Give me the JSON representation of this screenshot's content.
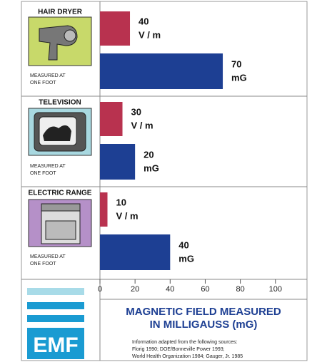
{
  "chart_data": {
    "type": "bar",
    "orientation": "horizontal",
    "categories": [
      "HAIR DRYER",
      "TELEVISION",
      "ELECTRIC RANGE"
    ],
    "notes": [
      [
        "MEASURED AT",
        "ONE FOOT"
      ],
      [
        "MEASURED AT",
        "ONE FOOT"
      ],
      [
        "MEASURED AT",
        "ONE FOOT"
      ]
    ],
    "series": [
      {
        "name": "V / m",
        "color": "#b8324f",
        "values": [
          40,
          30,
          10
        ],
        "axis": "x2"
      },
      {
        "name": "mG",
        "color": "#1d3f93",
        "values": [
          70,
          20,
          40
        ]
      }
    ],
    "xlim": [
      0,
      118
    ],
    "xticks": [
      0,
      20,
      40,
      60,
      80,
      100
    ],
    "x2lim": [
      0,
      276
    ],
    "title": [
      "MAGNETIC FIELD MEASURED",
      "IN MILLIGAUSS (mG)"
    ],
    "logo": "EMF",
    "sources": [
      "Information adapted from the following sources:",
      "Florig 1990; DOE/Bonneville Power 1993;",
      "World Health Organization 1984; Gauger, Jr. 1985"
    ]
  }
}
